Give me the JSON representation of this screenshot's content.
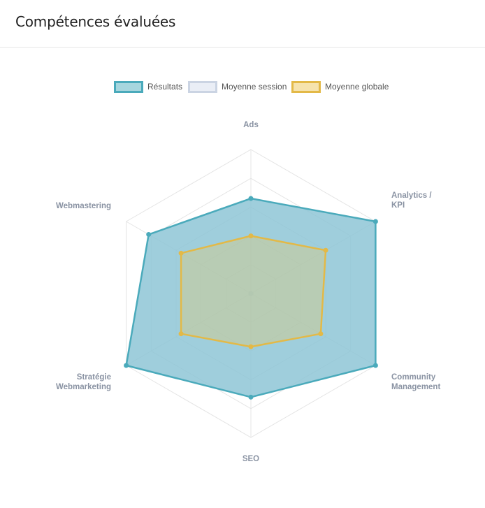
{
  "card": {
    "title": "Compétences évaluées"
  },
  "legend": [
    {
      "label": "Résultats",
      "border": "#4aaabb",
      "fill": "#a6d6de"
    },
    {
      "label": "Moyenne session",
      "border": "#cbd4e3",
      "fill": "#eaeef6"
    },
    {
      "label": "Moyenne globale",
      "border": "#e3b947",
      "fill": "#f6e3ad"
    }
  ],
  "chart_data": {
    "type": "radar",
    "axes": [
      [
        "Ads"
      ],
      [
        "Analytics /",
        "KPI"
      ],
      [
        "Community",
        "Management"
      ],
      [
        "SEO"
      ],
      [
        "Stratégie",
        "Webmarketing"
      ],
      [
        "Webmastering"
      ]
    ],
    "rmax": 100,
    "grid_levels": 5,
    "series": [
      {
        "name": "Résultats",
        "values": [
          66,
          100,
          100,
          72,
          100,
          82
        ],
        "stroke": "#4aaabb",
        "fill": "#8ec6d6",
        "fill_opacity": 0.85
      },
      {
        "name": "Moyenne session",
        "values": [
          0,
          0,
          0,
          0,
          0,
          0
        ],
        "stroke": "#cbd4e3",
        "fill": "#eaeef6",
        "fill_opacity": 0.5
      },
      {
        "name": "Moyenne globale",
        "values": [
          40,
          60,
          56,
          37,
          56,
          56
        ],
        "stroke": "#e3b947",
        "fill": "#e9c86b",
        "fill_opacity": 0.35
      }
    ]
  }
}
